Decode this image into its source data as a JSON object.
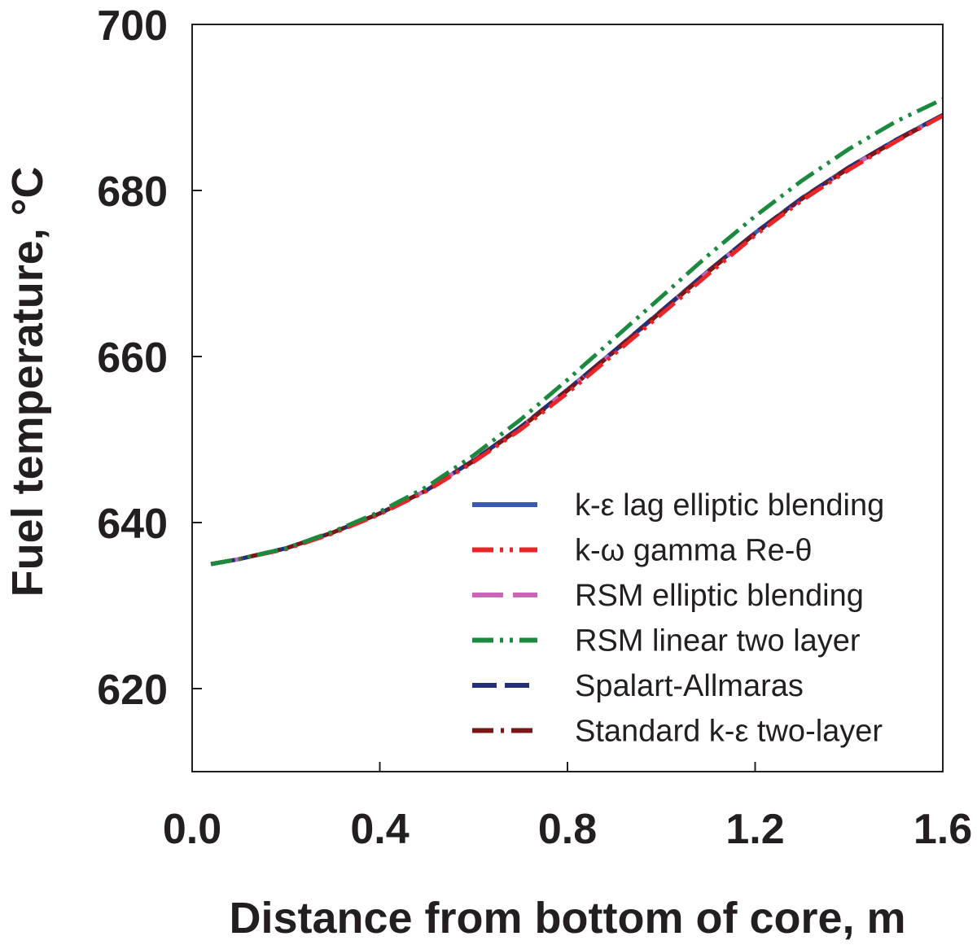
{
  "chart_data": {
    "type": "line",
    "title": "",
    "xlabel": "Distance from bottom of core, m",
    "ylabel": "Fuel temperature, °C",
    "xlim": [
      0.0,
      1.6
    ],
    "ylim": [
      610,
      700
    ],
    "x_ticks": [
      0.0,
      0.4,
      0.8,
      1.2,
      1.6
    ],
    "x_tick_labels": [
      "0.0",
      "0.4",
      "0.8",
      "1.2",
      "1.6"
    ],
    "y_ticks": [
      620,
      640,
      660,
      680,
      700
    ],
    "y_tick_labels": [
      "620",
      "640",
      "660",
      "680",
      "700"
    ],
    "grid": false,
    "legend_position": "bottom-right",
    "x": [
      0.04,
      0.1,
      0.2,
      0.3,
      0.4,
      0.5,
      0.6,
      0.7,
      0.8,
      0.9,
      1.0,
      1.1,
      1.2,
      1.3,
      1.4,
      1.5,
      1.6
    ],
    "series": [
      {
        "name": "k-ε lag elliptic blending",
        "color": "#3a5bb0",
        "dash": "solid",
        "values": [
          635.0,
          635.6,
          636.9,
          638.8,
          641.1,
          643.9,
          647.5,
          651.5,
          656.0,
          660.7,
          665.5,
          670.3,
          674.9,
          679.1,
          682.8,
          686.1,
          689.1
        ]
      },
      {
        "name": "k-ω gamma Re-θ",
        "color": "#e8262a",
        "dash": "dash-dot-dot",
        "values": [
          635.0,
          635.6,
          636.8,
          638.7,
          641.0,
          643.8,
          647.3,
          651.2,
          655.6,
          660.3,
          665.1,
          669.9,
          674.6,
          678.8,
          682.5,
          685.9,
          689.0
        ]
      },
      {
        "name": "RSM elliptic blending",
        "color": "#c966b8",
        "dash": "long-dash",
        "values": [
          635.0,
          635.6,
          636.9,
          638.8,
          641.1,
          643.9,
          647.5,
          651.5,
          655.9,
          660.6,
          665.4,
          670.2,
          674.8,
          679.0,
          682.7,
          686.0,
          689.0
        ]
      },
      {
        "name": "RSM linear two layer",
        "color": "#1b8a3e",
        "dash": "dash-dot-dot",
        "values": [
          635.0,
          635.6,
          636.9,
          638.9,
          641.3,
          644.3,
          648.1,
          652.4,
          657.2,
          662.2,
          667.2,
          672.2,
          676.9,
          681.2,
          685.0,
          688.3,
          691.0
        ]
      },
      {
        "name": "Spalart-Allmaras",
        "color": "#232f7a",
        "dash": "dash",
        "values": [
          635.0,
          635.6,
          636.9,
          638.8,
          641.1,
          643.9,
          647.5,
          651.5,
          656.0,
          660.7,
          665.5,
          670.3,
          674.9,
          679.1,
          682.8,
          686.1,
          689.1
        ]
      },
      {
        "name": "Standard k-ε two-layer",
        "color": "#7a1616",
        "dash": "dash-dot",
        "values": [
          635.0,
          635.6,
          636.9,
          638.8,
          641.1,
          643.9,
          647.4,
          651.4,
          655.9,
          660.6,
          665.4,
          670.2,
          674.8,
          679.0,
          682.7,
          686.0,
          689.0
        ]
      }
    ]
  }
}
